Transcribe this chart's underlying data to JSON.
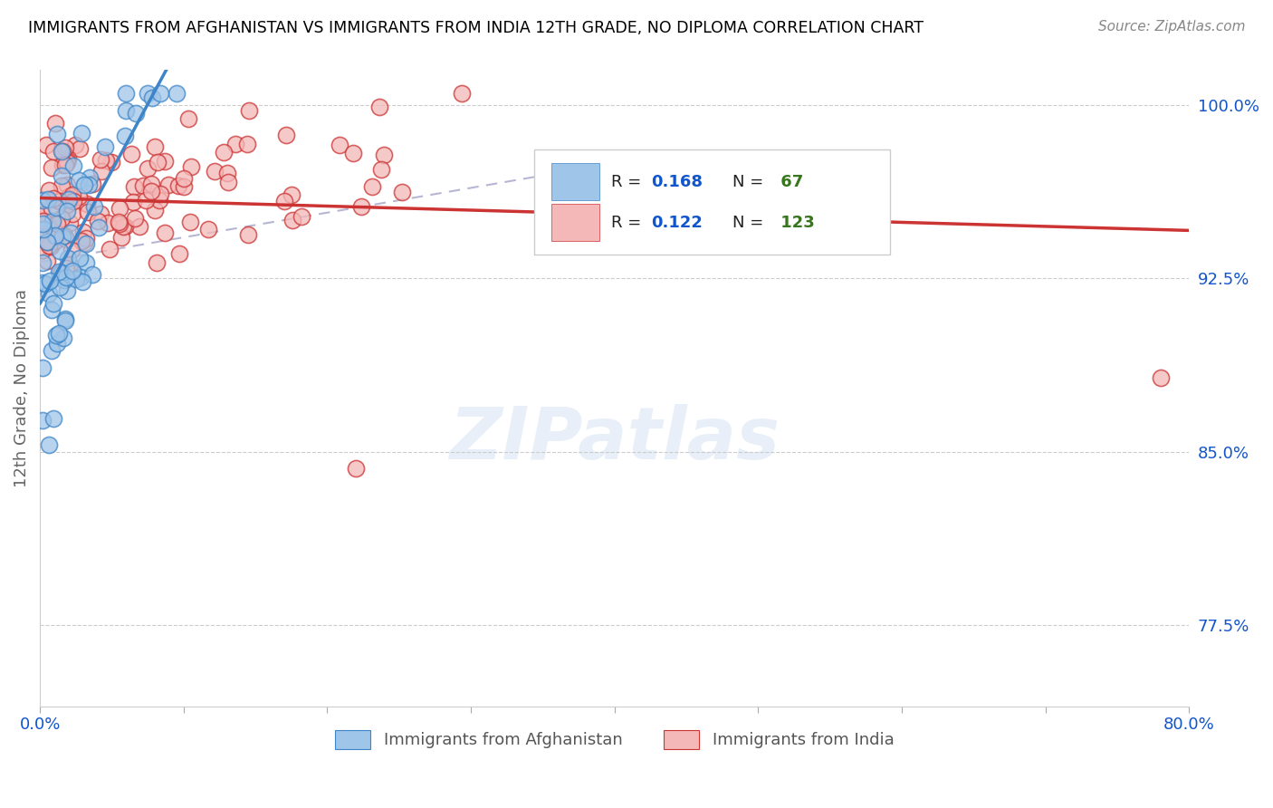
{
  "title": "IMMIGRANTS FROM AFGHANISTAN VS IMMIGRANTS FROM INDIA 12TH GRADE, NO DIPLOMA CORRELATION CHART",
  "source": "Source: ZipAtlas.com",
  "ylabel": "12th Grade, No Diploma",
  "xlim": [
    0.0,
    0.8
  ],
  "ylim": [
    0.74,
    1.015
  ],
  "ytick_positions": [
    0.775,
    0.85,
    0.925,
    1.0
  ],
  "ytick_labels": [
    "77.5%",
    "85.0%",
    "92.5%",
    "100.0%"
  ],
  "xtick_positions": [
    0.0,
    0.1,
    0.2,
    0.3,
    0.4,
    0.5,
    0.6,
    0.7,
    0.8
  ],
  "xtick_labels": [
    "0.0%",
    "",
    "",
    "",
    "",
    "",
    "",
    "",
    "80.0%"
  ],
  "afghanistan_color": "#9fc5e8",
  "india_color": "#f4b8b8",
  "afghanistan_line_color": "#3d85c8",
  "india_line_color": "#cc3333",
  "dash_line_color": "#aaaacc",
  "afghanistan_R": 0.168,
  "afghanistan_N": 67,
  "india_R": 0.122,
  "india_N": 123,
  "watermark": "ZIPatlas",
  "legend_R_color": "#1155cc",
  "legend_N_color": "#38761d",
  "background_color": "#ffffff",
  "grid_color": "#cccccc",
  "title_color": "#000000",
  "tick_color": "#1155cc",
  "ylabel_color": "#666666"
}
